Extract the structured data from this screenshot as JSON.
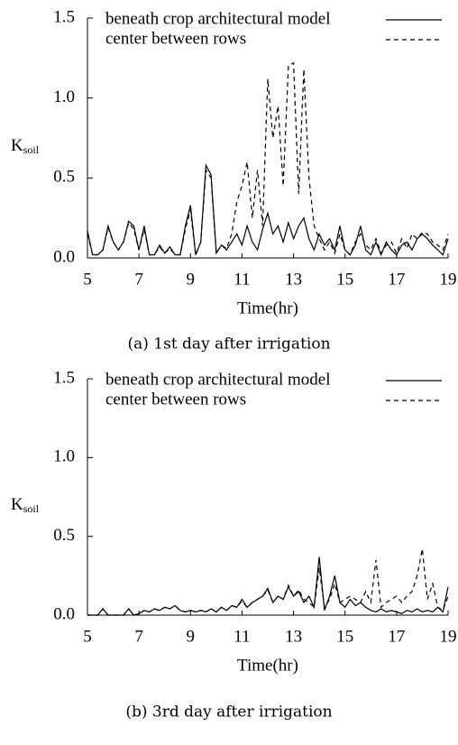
{
  "chart_data": [
    {
      "type": "line",
      "xlabel": "Time(hr)",
      "ylabel": "K",
      "ylabel_sub": "soil",
      "caption": "(a) 1st day after irrigation",
      "xlim": [
        5,
        19
      ],
      "ylim": [
        0,
        1.5
      ],
      "xticks": [
        5,
        7,
        9,
        11,
        13,
        15,
        17,
        19
      ],
      "yticks": [
        {
          "value": 0,
          "label": "0.0"
        },
        0.5,
        {
          "value": 1,
          "label": "1.0"
        },
        1.5
      ],
      "legend": "upper right",
      "x": [
        5,
        5.2,
        5.4,
        5.6,
        5.8,
        6,
        6.2,
        6.4,
        6.6,
        6.8,
        7,
        7.2,
        7.4,
        7.6,
        7.8,
        8,
        8.2,
        8.4,
        8.6,
        8.8,
        9,
        9.2,
        9.4,
        9.6,
        9.8,
        10,
        10.2,
        10.4,
        10.6,
        10.8,
        11,
        11.2,
        11.4,
        11.6,
        11.8,
        12,
        12.2,
        12.4,
        12.6,
        12.8,
        13,
        13.2,
        13.4,
        13.6,
        13.8,
        14,
        14.2,
        14.4,
        14.6,
        14.8,
        15,
        15.2,
        15.4,
        15.6,
        15.8,
        16,
        16.2,
        16.4,
        16.6,
        16.8,
        17,
        17.2,
        17.4,
        17.6,
        17.8,
        18,
        18.2,
        18.4,
        18.6,
        18.8,
        19
      ],
      "series": [
        {
          "name": "beneath crop architectural model",
          "color": "#000000",
          "dash": "solid",
          "values": [
            0.17,
            0.02,
            0.02,
            0.05,
            0.2,
            0.1,
            0.05,
            0.1,
            0.23,
            0.2,
            0.05,
            0.2,
            0.02,
            0.02,
            0.08,
            0.03,
            0.07,
            0.02,
            0.02,
            0.2,
            0.33,
            0.02,
            0.1,
            0.58,
            0.52,
            0.03,
            0.08,
            0.05,
            0.1,
            0.15,
            0.08,
            0.2,
            0.1,
            0.05,
            0.18,
            0.28,
            0.15,
            0.2,
            0.1,
            0.22,
            0.12,
            0.2,
            0.25,
            0.12,
            0.05,
            0.15,
            0.08,
            0.12,
            0.05,
            0.2,
            0.05,
            0.02,
            0.08,
            0.2,
            0.05,
            0.02,
            0.1,
            0.02,
            0.1,
            0.05,
            0.02,
            0.08,
            0.1,
            0.05,
            0.12,
            0.15,
            0.12,
            0.08,
            0.05,
            0.02,
            0.12
          ]
        },
        {
          "name": "center between rows",
          "color": "#000000",
          "dash": "dashed",
          "values": [
            0.15,
            0.02,
            0.02,
            0.05,
            0.19,
            0.1,
            0.05,
            0.1,
            0.22,
            0.18,
            0.05,
            0.18,
            0.02,
            0.02,
            0.07,
            0.03,
            0.06,
            0.02,
            0.02,
            0.18,
            0.3,
            0.02,
            0.1,
            0.55,
            0.5,
            0.03,
            0.08,
            0.06,
            0.15,
            0.35,
            0.45,
            0.6,
            0.25,
            0.55,
            0.2,
            1.12,
            0.75,
            0.95,
            0.45,
            1.2,
            1.22,
            0.4,
            1.18,
            0.5,
            0.2,
            0.12,
            0.05,
            0.1,
            0.03,
            0.15,
            0.05,
            0.02,
            0.1,
            0.15,
            0.08,
            0.05,
            0.12,
            0.03,
            0.08,
            0.1,
            0.03,
            0.12,
            0.06,
            0.15,
            0.12,
            0.16,
            0.15,
            0.1,
            0.08,
            0.05,
            0.15
          ]
        }
      ]
    },
    {
      "type": "line",
      "xlabel": "Time(hr)",
      "ylabel": "K",
      "ylabel_sub": "soil",
      "caption": "(b) 3rd day after irrigation",
      "xlim": [
        5,
        19
      ],
      "ylim": [
        0,
        1.5
      ],
      "xticks": [
        5,
        7,
        9,
        11,
        13,
        15,
        17,
        19
      ],
      "yticks": [
        {
          "value": 0,
          "label": "0.0"
        },
        0.5,
        {
          "value": 1,
          "label": "1.0"
        },
        1.5
      ],
      "legend": "upper right",
      "x": [
        5,
        5.2,
        5.4,
        5.6,
        5.8,
        6,
        6.2,
        6.4,
        6.6,
        6.8,
        7,
        7.2,
        7.4,
        7.6,
        7.8,
        8,
        8.2,
        8.4,
        8.6,
        8.8,
        9,
        9.2,
        9.4,
        9.6,
        9.8,
        10,
        10.2,
        10.4,
        10.6,
        10.8,
        11,
        11.2,
        11.4,
        11.6,
        11.8,
        12,
        12.2,
        12.4,
        12.6,
        12.8,
        13,
        13.2,
        13.4,
        13.6,
        13.8,
        14,
        14.2,
        14.4,
        14.6,
        14.8,
        15,
        15.2,
        15.4,
        15.6,
        15.8,
        16,
        16.2,
        16.4,
        16.6,
        16.8,
        17,
        17.2,
        17.4,
        17.6,
        17.8,
        18,
        18.2,
        18.4,
        18.6,
        18.8,
        19
      ],
      "series": [
        {
          "name": "beneath crop architectural model",
          "color": "#000000",
          "dash": "solid",
          "values": [
            0,
            0,
            0,
            0.04,
            0,
            0,
            0,
            0,
            0.04,
            0,
            0.01,
            0.03,
            0.02,
            0.04,
            0.03,
            0.05,
            0.04,
            0.06,
            0.03,
            0.02,
            0.03,
            0.02,
            0.03,
            0.02,
            0.04,
            0.02,
            0.05,
            0.03,
            0.06,
            0.05,
            0.1,
            0.05,
            0.08,
            0.1,
            0.12,
            0.17,
            0.08,
            0.12,
            0.1,
            0.18,
            0.12,
            0.15,
            0.08,
            0.12,
            0.05,
            0.37,
            0.03,
            0.12,
            0.25,
            0.08,
            0.05,
            0.1,
            0.06,
            0.08,
            0.05,
            0.03,
            0.02,
            0.04,
            0.02,
            0.03,
            0.02,
            0.01,
            0.03,
            0.02,
            0.04,
            0.02,
            0.03,
            0.02,
            0.05,
            0.02,
            0.18
          ]
        },
        {
          "name": "center between rows",
          "color": "#000000",
          "dash": "dashed",
          "values": [
            0,
            0,
            0,
            0.04,
            0,
            0,
            0,
            0,
            0.04,
            0,
            0.01,
            0.03,
            0.02,
            0.04,
            0.03,
            0.05,
            0.04,
            0.06,
            0.03,
            0.02,
            0.03,
            0.02,
            0.03,
            0.02,
            0.04,
            0.02,
            0.05,
            0.03,
            0.06,
            0.05,
            0.09,
            0.05,
            0.08,
            0.1,
            0.12,
            0.16,
            0.08,
            0.12,
            0.1,
            0.19,
            0.12,
            0.16,
            0.1,
            0.08,
            0.05,
            0.3,
            0.05,
            0.1,
            0.2,
            0.08,
            0.1,
            0.12,
            0.1,
            0.08,
            0.15,
            0.08,
            0.35,
            0.05,
            0.08,
            0.1,
            0.12,
            0.08,
            0.12,
            0.15,
            0.25,
            0.42,
            0.1,
            0.2,
            0.05,
            0.03,
            0.12
          ]
        }
      ]
    }
  ]
}
